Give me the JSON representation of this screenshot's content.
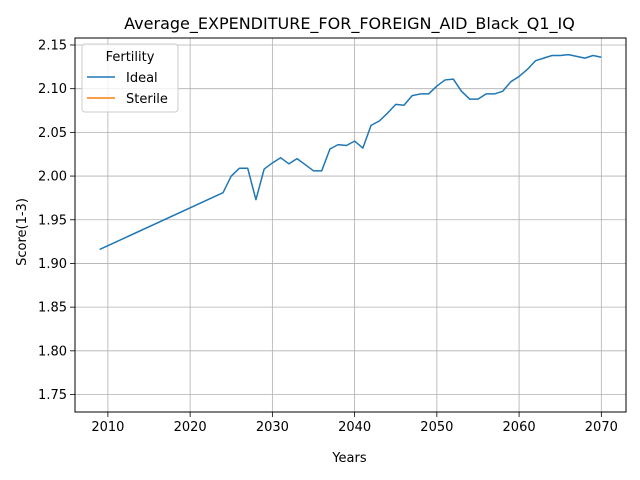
{
  "chart_data": {
    "type": "line",
    "title": "Average_EXPENDITURE_FOR_FOREIGN_AID_Black_Q1_IQ",
    "xlabel": "Years",
    "ylabel": "Score(1-3)",
    "xlim": [
      2006,
      2073
    ],
    "ylim": [
      1.73,
      2.158
    ],
    "xticks": [
      2010,
      2020,
      2030,
      2040,
      2050,
      2060,
      2070
    ],
    "yticks": [
      1.75,
      1.8,
      1.85,
      1.9,
      1.95,
      2.0,
      2.05,
      2.1,
      2.15
    ],
    "grid": true,
    "legend": {
      "title": "Fertility",
      "placement": "upper-left",
      "entries": [
        "Ideal",
        "Sterile"
      ]
    },
    "series": [
      {
        "name": "Ideal",
        "color": "#1f77b4",
        "x": [
          2009,
          2024,
          2025,
          2026,
          2027,
          2028,
          2029,
          2030,
          2031,
          2032,
          2033,
          2034,
          2035,
          2036,
          2037,
          2038,
          2039,
          2040,
          2041,
          2042,
          2043,
          2044,
          2045,
          2046,
          2047,
          2048,
          2049,
          2050,
          2051,
          2052,
          2053,
          2054,
          2055,
          2056,
          2057,
          2058,
          2059,
          2060,
          2061,
          2062,
          2063,
          2064,
          2065,
          2066,
          2067,
          2068,
          2069,
          2070
        ],
        "y": [
          1.916,
          1.981,
          2.0,
          2.009,
          2.009,
          1.973,
          2.008,
          2.015,
          2.021,
          2.014,
          2.02,
          2.013,
          2.006,
          2.006,
          2.031,
          2.036,
          2.035,
          2.04,
          2.032,
          2.058,
          2.063,
          2.072,
          2.082,
          2.081,
          2.092,
          2.094,
          2.094,
          2.103,
          2.11,
          2.111,
          2.097,
          2.088,
          2.088,
          2.094,
          2.094,
          2.097,
          2.108,
          2.114,
          2.122,
          2.132,
          2.135,
          2.138,
          2.138,
          2.139,
          2.137,
          2.135,
          2.138,
          2.136
        ]
      },
      {
        "name": "Sterile",
        "color": "#ff7f0e",
        "x": [],
        "y": []
      }
    ]
  }
}
